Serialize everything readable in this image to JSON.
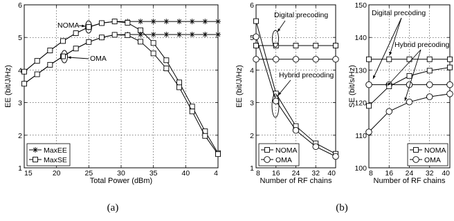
{
  "captions": {
    "a": "(a)",
    "b": "(b)"
  },
  "chart_data": [
    {
      "type": "line",
      "panel": "a",
      "xlabel": "Total Power (dBm)",
      "ylabel": "EE (bit/J/Hz)",
      "xlim": [
        15,
        45
      ],
      "ylim": [
        1,
        6
      ],
      "xticks": [
        "15",
        "20",
        "25",
        "30",
        "35",
        "40",
        "4"
      ],
      "yticks": [
        "1",
        "2",
        "3",
        "4",
        "5",
        "6"
      ],
      "grid": true,
      "legend": {
        "position": "bottom-left",
        "entries": [
          "MaxEE",
          "MaxSE"
        ]
      },
      "annotations": [
        "NOMA",
        "OMA"
      ],
      "x": [
        15,
        17,
        19,
        21,
        23,
        25,
        27,
        29,
        31,
        33,
        35,
        37,
        39,
        41,
        43,
        45
      ],
      "series": [
        {
          "group": "NOMA",
          "legend": "MaxEE",
          "marker": "star",
          "values": [
            3.95,
            4.28,
            4.6,
            4.89,
            5.13,
            5.32,
            5.44,
            5.49,
            5.49,
            5.49,
            5.49,
            5.49,
            5.49,
            5.49,
            5.49,
            5.49
          ]
        },
        {
          "group": "NOMA",
          "legend": "MaxSE",
          "marker": "square",
          "values": [
            3.95,
            4.28,
            4.6,
            4.89,
            5.13,
            5.32,
            5.44,
            5.49,
            5.45,
            5.22,
            4.83,
            4.3,
            3.62,
            2.88,
            2.12,
            1.45
          ]
        },
        {
          "group": "OMA",
          "legend": "MaxEE",
          "marker": "star",
          "values": [
            3.58,
            3.87,
            4.16,
            4.42,
            4.66,
            4.86,
            5.0,
            5.08,
            5.09,
            5.09,
            5.09,
            5.09,
            5.09,
            5.09,
            5.09,
            5.09
          ]
        },
        {
          "group": "OMA",
          "legend": "MaxSE",
          "marker": "square",
          "values": [
            3.58,
            3.87,
            4.16,
            4.42,
            4.66,
            4.86,
            5.0,
            5.08,
            5.07,
            4.87,
            4.51,
            4.05,
            3.47,
            2.73,
            1.98,
            1.42
          ]
        }
      ]
    },
    {
      "type": "line",
      "panel": "b-left",
      "xlabel": "Number of RF chains",
      "ylabel": "EE (bit/J/Hz)",
      "xlim": [
        8,
        40
      ],
      "ylim": [
        1,
        6
      ],
      "xticks": [
        "8",
        "16",
        "24",
        "32",
        "40"
      ],
      "yticks": [
        "1",
        "2",
        "3",
        "4",
        "5",
        "6"
      ],
      "grid": true,
      "legend": {
        "position": "bottom-left",
        "entries": [
          "NOMA",
          "OMA"
        ]
      },
      "annotations": [
        "Digital precoding",
        "Hybrid precoding"
      ],
      "x": [
        8,
        16,
        24,
        32,
        40
      ],
      "series": [
        {
          "group": "Digital precoding",
          "legend": "NOMA",
          "marker": "square",
          "values": [
            4.75,
            4.75,
            4.75,
            4.75,
            4.75
          ]
        },
        {
          "group": "Digital precoding",
          "legend": "OMA",
          "marker": "circle",
          "values": [
            4.33,
            4.33,
            4.33,
            4.33,
            4.33
          ]
        },
        {
          "group": "Hybrid precoding",
          "legend": "NOMA",
          "marker": "square",
          "values": [
            5.5,
            3.28,
            2.28,
            1.75,
            1.43
          ]
        },
        {
          "group": "Hybrid precoding",
          "legend": "OMA",
          "marker": "circle",
          "values": [
            5.02,
            3.05,
            2.15,
            1.65,
            1.35
          ]
        }
      ]
    },
    {
      "type": "line",
      "panel": "b-right",
      "xlabel": "Number of RF chains",
      "ylabel": "SE (bit/s/Hz)",
      "xlim": [
        8,
        40
      ],
      "ylim": [
        100,
        150
      ],
      "xticks": [
        "8",
        "16",
        "24",
        "32",
        "40"
      ],
      "yticks": [
        "100",
        "110",
        "120",
        "130",
        "140",
        "150"
      ],
      "grid": true,
      "legend": {
        "position": "bottom-right",
        "entries": [
          "NOMA",
          "OMA"
        ]
      },
      "annotations": [
        "Digital precoding",
        "Hybrid precoding"
      ],
      "x": [
        8,
        16,
        24,
        32,
        40
      ],
      "series": [
        {
          "group": "Digital precoding",
          "legend": "NOMA",
          "marker": "square",
          "values": [
            133.3,
            133.3,
            133.3,
            133.3,
            133.3
          ]
        },
        {
          "group": "Digital precoding",
          "legend": "OMA",
          "marker": "circle",
          "values": [
            125.5,
            125.5,
            125.5,
            125.5,
            125.5
          ]
        },
        {
          "group": "Hybrid precoding",
          "legend": "NOMA",
          "marker": "square",
          "values": [
            119.0,
            125.0,
            128.2,
            129.8,
            130.8
          ]
        },
        {
          "group": "Hybrid precoding",
          "legend": "OMA",
          "marker": "circle",
          "values": [
            111.0,
            117.3,
            120.2,
            121.8,
            122.7
          ]
        }
      ]
    }
  ]
}
